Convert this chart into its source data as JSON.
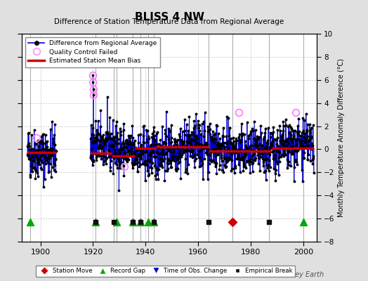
{
  "title": "BLISS 4 NW",
  "subtitle": "Difference of Station Temperature Data from Regional Average",
  "ylabel_right": "Monthly Temperature Anomaly Difference (°C)",
  "xlim": [
    1893,
    2005
  ],
  "ylim": [
    -8,
    10
  ],
  "yticks": [
    -8,
    -6,
    -4,
    -2,
    0,
    2,
    4,
    6,
    8,
    10
  ],
  "xticks": [
    1900,
    1920,
    1940,
    1960,
    1980,
    2000
  ],
  "background_color": "#e0e0e0",
  "plot_bg_color": "#ffffff",
  "grid_color": "#b0b0b0",
  "seed": 42,
  "data_color": "#0000cc",
  "bias_color": "#cc0000",
  "qc_color": "#ff80ff",
  "station_move_events": [
    1973
  ],
  "record_gap_events": [
    1896,
    1921,
    1929,
    1935,
    1938,
    1941,
    1943,
    2000
  ],
  "obs_change_events": [],
  "empirical_break_events": [
    1921,
    1928,
    1935,
    1938,
    1943,
    1964,
    1987
  ],
  "segments": [
    {
      "start": 1895,
      "end": 1906,
      "bias": -0.3
    },
    {
      "start": 1919,
      "end": 1927,
      "bias": -0.35
    },
    {
      "start": 1927,
      "end": 1936,
      "bias": -0.6
    },
    {
      "start": 1936,
      "end": 1944,
      "bias": 0.1
    },
    {
      "start": 1944,
      "end": 1964,
      "bias": 0.2
    },
    {
      "start": 1964,
      "end": 1988,
      "bias": -0.15
    },
    {
      "start": 1988,
      "end": 2004,
      "bias": 0.1
    }
  ],
  "qc_failed_points": [
    {
      "year": 1919.9,
      "value": 6.4
    },
    {
      "year": 1920.0,
      "value": 5.8
    },
    {
      "year": 1920.1,
      "value": 5.2
    },
    {
      "year": 1920.2,
      "value": 4.7
    },
    {
      "year": 1898.5,
      "value": 1.0
    },
    {
      "year": 1932.0,
      "value": -1.5
    },
    {
      "year": 1975.5,
      "value": 3.2
    },
    {
      "year": 1997.0,
      "value": 3.2
    }
  ],
  "watermark": "Berkeley Earth",
  "event_y": -6.3,
  "figsize": [
    5.24,
    4.0
  ],
  "dpi": 100
}
